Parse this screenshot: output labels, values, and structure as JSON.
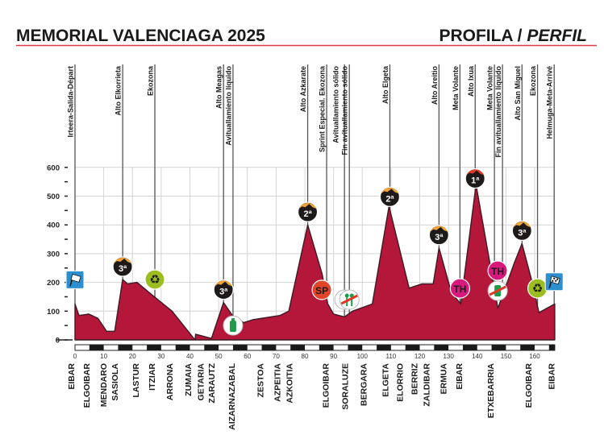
{
  "header": {
    "title": "MEMORIAL VALENCIAGA 2025",
    "subtitle_main": "PROFILA / ",
    "subtitle_italic": "PERFIL",
    "accent_color": "#e0394a"
  },
  "chart_data": {
    "type": "area",
    "title": "",
    "xlabel": "",
    "ylabel": "",
    "xlim": [
      0,
      167
    ],
    "ylim": [
      0,
      600
    ],
    "grid": true,
    "x_ticks": [
      0,
      10,
      20,
      30,
      40,
      50,
      60,
      70,
      80,
      90,
      100,
      110,
      120,
      130,
      140,
      150,
      160
    ],
    "y_ticks": [
      0,
      100,
      200,
      300,
      400,
      500,
      600
    ],
    "fill_color": "#b5173a",
    "profile": [
      [
        0,
        125
      ],
      [
        1.4,
        85
      ],
      [
        4.8,
        90
      ],
      [
        8,
        75
      ],
      [
        11,
        30
      ],
      [
        13.8,
        30
      ],
      [
        16.6,
        210
      ],
      [
        18.3,
        195
      ],
      [
        21.6,
        200
      ],
      [
        27,
        155
      ],
      [
        33.8,
        100
      ],
      [
        41.8,
        0
      ],
      [
        42,
        20
      ],
      [
        47.5,
        5
      ],
      [
        51.7,
        130
      ],
      [
        54.8,
        85
      ],
      [
        58.7,
        60
      ],
      [
        61.8,
        70
      ],
      [
        71.3,
        85
      ],
      [
        74.4,
        100
      ],
      [
        81,
        400
      ],
      [
        86,
        230
      ],
      [
        88,
        125
      ],
      [
        90,
        90
      ],
      [
        93.8,
        80
      ],
      [
        96.6,
        100
      ],
      [
        103.5,
        125
      ],
      [
        109.3,
        465
      ],
      [
        116.3,
        180
      ],
      [
        120.8,
        195
      ],
      [
        124.7,
        195
      ],
      [
        126.7,
        320
      ],
      [
        131,
        165
      ],
      [
        134.3,
        125
      ],
      [
        139.6,
        540
      ],
      [
        147.2,
        110
      ],
      [
        152.8,
        265
      ],
      [
        155.6,
        335
      ],
      [
        159.3,
        195
      ],
      [
        161.5,
        95
      ],
      [
        167,
        125
      ]
    ],
    "markers": [
      {
        "label": "Irteera-Salida-Départ",
        "km": 0,
        "icon": "start-flag"
      },
      {
        "label": "Alto Elkorrieta",
        "km": 16.6,
        "icon": "climb",
        "category": "3ª"
      },
      {
        "label": "Ekozona",
        "km": 27.8,
        "icon": "recycle"
      },
      {
        "label": "Alto Meagas",
        "km": 51.7,
        "icon": "climb",
        "category": "3ª"
      },
      {
        "label": "Avituallamiento líquido",
        "km": 55,
        "icon": "bottle"
      },
      {
        "label": "Alto Azkarate",
        "km": 81,
        "icon": "climb",
        "category": "2ª"
      },
      {
        "label": "Sprint Especial. Ekozona",
        "km": 87.6,
        "icon": "sprint",
        "icon_label": "SP"
      },
      {
        "label": "Avituallamiento sólido",
        "km": 93.8,
        "icon": "food"
      },
      {
        "label": "Fin avituallamiento sólido",
        "km": 95.5,
        "icon": "food-end"
      },
      {
        "label": "Alto Elgeta",
        "km": 109.6,
        "icon": "climb",
        "category": "2ª"
      },
      {
        "label": "Alto Areitio",
        "km": 126.7,
        "icon": "climb",
        "category": "3ª"
      },
      {
        "label": "Meta Volante",
        "km": 134,
        "icon": "intermediate-sprint",
        "icon_label": "TH"
      },
      {
        "label": "Alto Ixua",
        "km": 139.3,
        "icon": "climb",
        "category": "1ª"
      },
      {
        "label": "Meta Volante",
        "label2": "Fin avituallamiento líquido",
        "km": 146,
        "icon": "intermediate-sprint",
        "icon_label": "TH"
      },
      {
        "label": "Alto San Miguel",
        "km": 155.6,
        "icon": "climb",
        "category": "3ª"
      },
      {
        "label": "Ekozona",
        "km": 161,
        "icon": "recycle"
      },
      {
        "label": "Helmuga-Meta-Arrivé",
        "km": 166.8,
        "icon": "finish-flag"
      }
    ],
    "towns": [
      {
        "name": "EIBAR",
        "km": 0
      },
      {
        "name": "ELGOIBAR",
        "km": 5.3
      },
      {
        "name": "MENDARO",
        "km": 11.2
      },
      {
        "name": "SASIOLA",
        "km": 15.2
      },
      {
        "name": "LASTUR",
        "km": 22.5
      },
      {
        "name": "ITZIAR",
        "km": 28.1
      },
      {
        "name": "ARRONA",
        "km": 34.3
      },
      {
        "name": "ZUMAIA",
        "km": 40.7
      },
      {
        "name": "GETARIA",
        "km": 45
      },
      {
        "name": "ZARAUTZ",
        "km": 48.9
      },
      {
        "name": "AIZARNAZABAL",
        "km": 55.9
      },
      {
        "name": "ZESTOA",
        "km": 65.8
      },
      {
        "name": "AZPEITIA",
        "km": 71.7
      },
      {
        "name": "AZKOITIA",
        "km": 75.9
      },
      {
        "name": "ELGOIBAR",
        "km": 88.6
      },
      {
        "name": "SORALUZE",
        "km": 95.3
      },
      {
        "name": "BERGARA",
        "km": 101.8
      },
      {
        "name": "ELGETA",
        "km": 109.3
      },
      {
        "name": "ELORRIO",
        "km": 114.4
      },
      {
        "name": "BERRIZ",
        "km": 119.5
      },
      {
        "name": "ZALDIBAR",
        "km": 123.7
      },
      {
        "name": "ERMUA",
        "km": 129.6
      },
      {
        "name": "EIBAR",
        "km": 135
      },
      {
        "name": "ETXEBARRIA",
        "km": 145.9
      },
      {
        "name": "ELGOIBAR",
        "km": 159.1
      },
      {
        "name": "EIBAR",
        "km": 167.2
      }
    ],
    "icon_colors": {
      "climb_top": "#f0a33a",
      "climb_top_1": "#e0392a",
      "recycle": "#9cbd1f",
      "sprint": "#e0452a",
      "intermediate-sprint": "#d6197a",
      "flag": "#2b8fd0",
      "food": "#1f9a4a"
    }
  }
}
